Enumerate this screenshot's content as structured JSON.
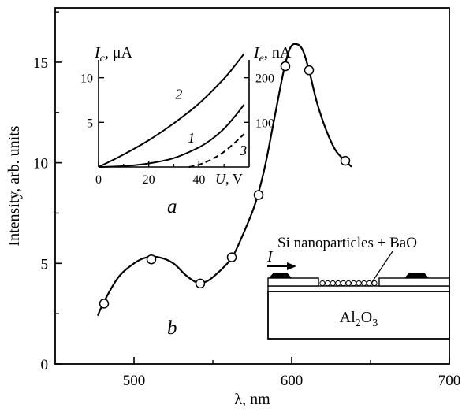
{
  "chart_data": [
    {
      "type": "scatter",
      "panel_label": "b",
      "xlabel_symbol": "λ",
      "xlabel_unit": "nm",
      "ylabel": "Intensity, arb. units",
      "xlim": [
        450,
        700
      ],
      "ylim": [
        0,
        17.7
      ],
      "xticks": [
        500,
        600,
        700
      ],
      "yticks": [
        0,
        5,
        10,
        15
      ],
      "markers": [
        {
          "x": 481,
          "y": 3.0
        },
        {
          "x": 511,
          "y": 5.2
        },
        {
          "x": 542,
          "y": 4.0
        },
        {
          "x": 562,
          "y": 5.3
        },
        {
          "x": 579,
          "y": 8.4
        },
        {
          "x": 596,
          "y": 14.8
        },
        {
          "x": 611,
          "y": 14.6
        },
        {
          "x": 634,
          "y": 10.1
        }
      ],
      "curve": [
        {
          "x": 477,
          "y": 2.4
        },
        {
          "x": 481,
          "y": 3.1
        },
        {
          "x": 490,
          "y": 4.3
        },
        {
          "x": 500,
          "y": 5.0
        },
        {
          "x": 508,
          "y": 5.3
        },
        {
          "x": 516,
          "y": 5.3
        },
        {
          "x": 525,
          "y": 5.0
        },
        {
          "x": 533,
          "y": 4.4
        },
        {
          "x": 540,
          "y": 4.05
        },
        {
          "x": 546,
          "y": 4.1
        },
        {
          "x": 552,
          "y": 4.45
        },
        {
          "x": 558,
          "y": 4.9
        },
        {
          "x": 563,
          "y": 5.4
        },
        {
          "x": 570,
          "y": 6.6
        },
        {
          "x": 577,
          "y": 8.0
        },
        {
          "x": 583,
          "y": 9.8
        },
        {
          "x": 589,
          "y": 12.2
        },
        {
          "x": 595,
          "y": 14.6
        },
        {
          "x": 599,
          "y": 15.7
        },
        {
          "x": 603,
          "y": 15.9
        },
        {
          "x": 607,
          "y": 15.6
        },
        {
          "x": 611,
          "y": 14.6
        },
        {
          "x": 616,
          "y": 13.0
        },
        {
          "x": 622,
          "y": 11.6
        },
        {
          "x": 628,
          "y": 10.6
        },
        {
          "x": 634,
          "y": 10.1
        },
        {
          "x": 638,
          "y": 9.8
        }
      ]
    },
    {
      "type": "line",
      "panel_label": "a",
      "left_ylabel_symbol": "I",
      "left_ylabel_sub": "c",
      "left_ylabel_unit": "μA",
      "right_ylabel_symbol": "I",
      "right_ylabel_sub": "e",
      "right_ylabel_unit": "nA",
      "xlabel_symbol": "U",
      "xlabel_unit": "V",
      "xlim": [
        0,
        60
      ],
      "ylim_left": [
        0,
        12
      ],
      "ylim_right": [
        0,
        240
      ],
      "xticks": [
        0,
        20,
        40
      ],
      "yticks_left": [
        5,
        10
      ],
      "yticks_right": [
        100,
        200
      ],
      "series": [
        {
          "name": "2",
          "style": "solid",
          "axis": "left",
          "x": [
            0,
            10,
            20,
            30,
            40,
            50,
            55,
            58
          ],
          "y": [
            0,
            1.4,
            3.0,
            4.9,
            7.1,
            9.9,
            11.6,
            12.7
          ]
        },
        {
          "name": "1",
          "style": "solid",
          "axis": "left",
          "x": [
            0,
            10,
            20,
            30,
            40,
            45,
            50,
            55,
            58
          ],
          "y": [
            0,
            0.1,
            0.4,
            1.0,
            2.2,
            3.1,
            4.3,
            5.9,
            7.0
          ]
        },
        {
          "name": "3",
          "style": "dashed",
          "axis": "left",
          "x": [
            36,
            40,
            45,
            50,
            55,
            58
          ],
          "y": [
            0,
            0.25,
            0.85,
            1.7,
            2.9,
            3.7
          ]
        }
      ]
    }
  ],
  "diagram": {
    "layer_label": "Si nanoparticles + BaO",
    "current_label": "I",
    "substrate_label_main": "Al",
    "substrate_label_sub": "2",
    "substrate_label_tail": "O",
    "substrate_label_sub2": "3"
  }
}
